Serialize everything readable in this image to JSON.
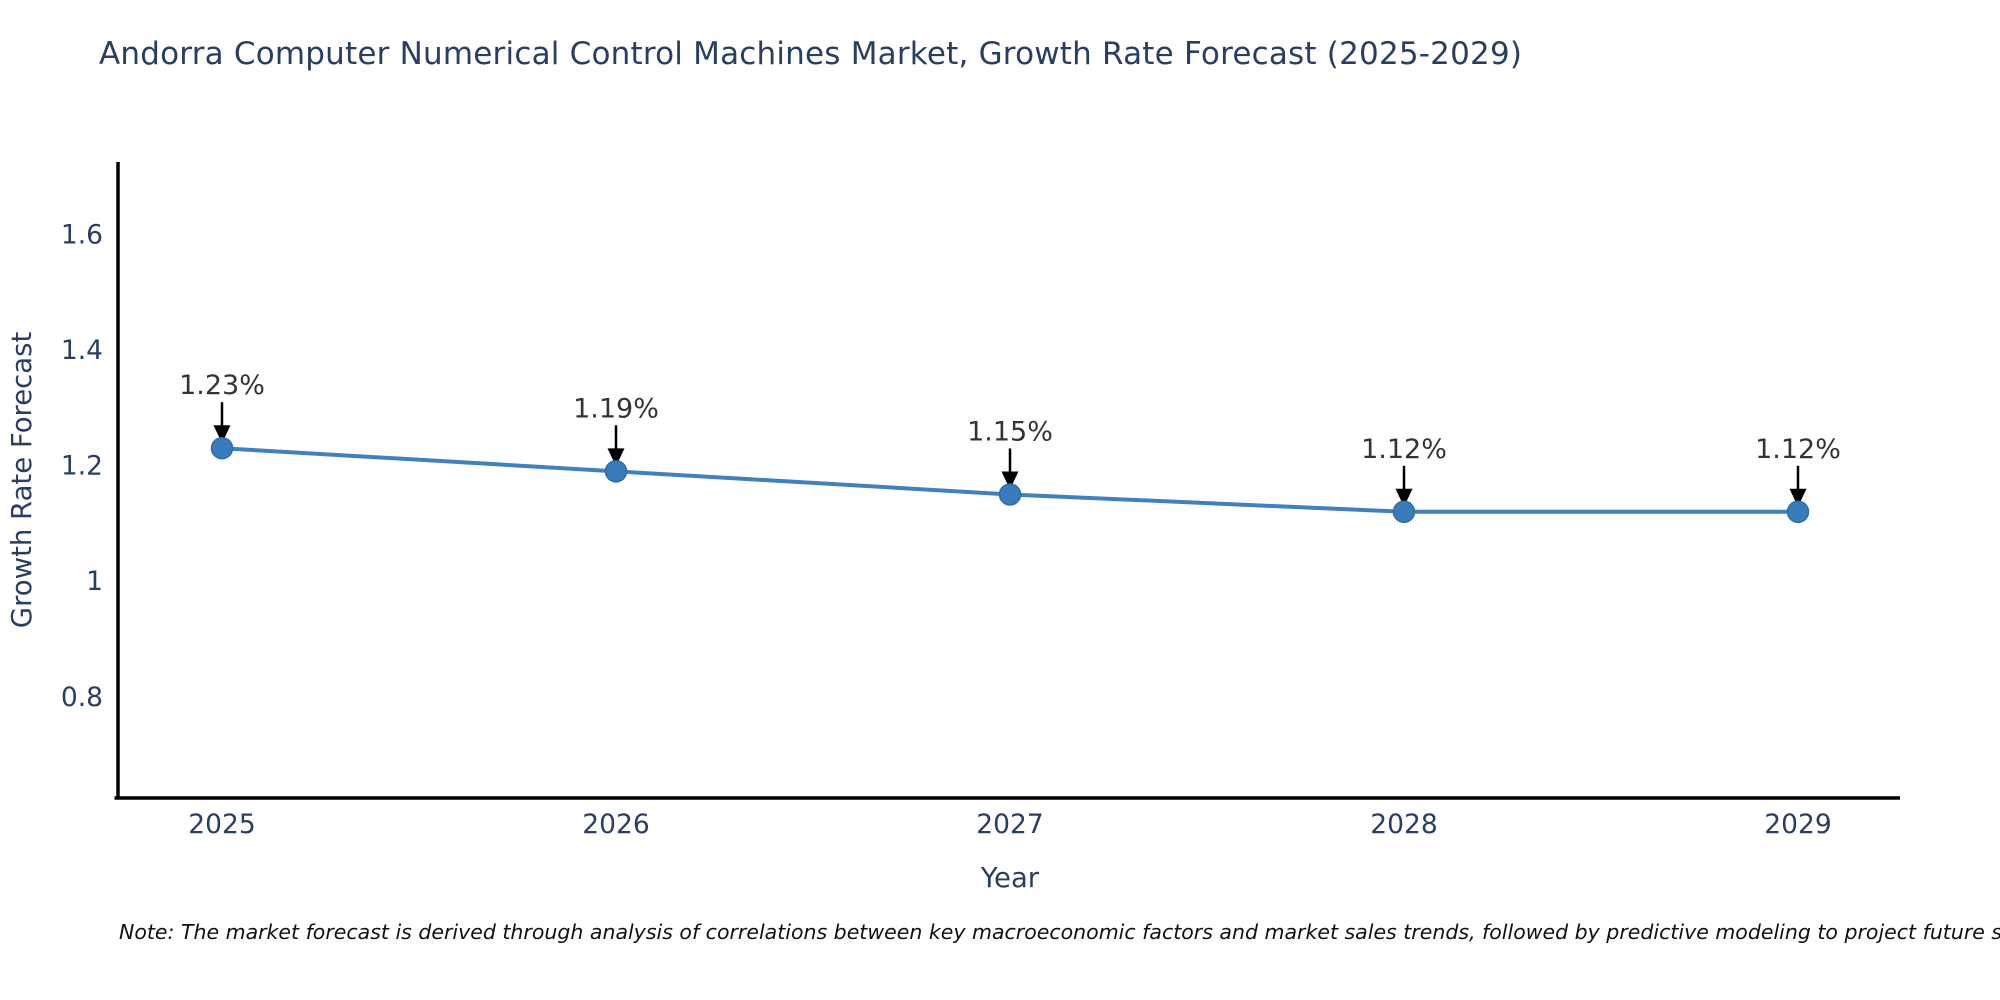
{
  "chart_data": {
    "type": "line",
    "title": "Andorra Computer Numerical Control Machines Market, Growth Rate Forecast (2025-2029)",
    "xlabel": "Year",
    "ylabel": "Growth Rate Forecast",
    "categories": [
      "2025",
      "2026",
      "2027",
      "2028",
      "2029"
    ],
    "series": [
      {
        "name": "Growth Rate Forecast",
        "values": [
          1.23,
          1.19,
          1.15,
          1.12,
          1.12
        ],
        "point_labels": [
          "1.23%",
          "1.19%",
          "1.15%",
          "1.12%",
          "1.12%"
        ]
      }
    ],
    "yticks": [
      0.8,
      1,
      1.2,
      1.4,
      1.6
    ],
    "ylim": [
      0.625,
      1.725
    ],
    "grid": false,
    "legend": "none",
    "colors": {
      "line": "#3f81bd",
      "marker_fill": "#3a7cbb",
      "marker_stroke": "#2e6da4",
      "axis": "#000000",
      "tick_label": "#2a3f5f",
      "axis_title": "#2a3f5f",
      "annotation_text": "#333333",
      "annotation_arrow": "#000000"
    },
    "note": "Note: The market forecast is derived through analysis of correlations between key macroeconomic factors and market sales trends, followed by predictive modeling to project future sales trends."
  }
}
